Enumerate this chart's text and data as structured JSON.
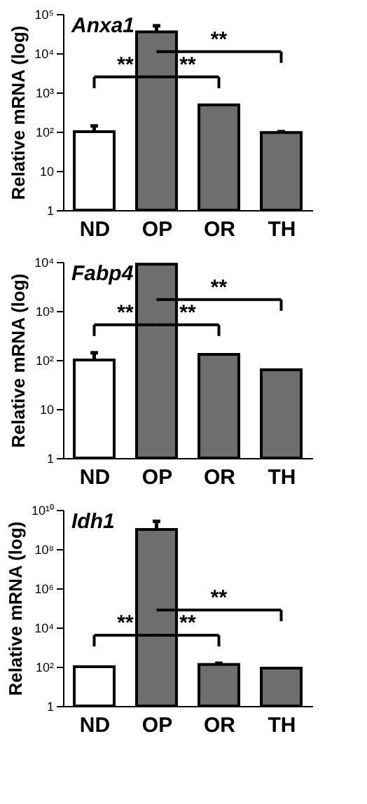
{
  "chart_data": [
    {
      "type": "bar",
      "title": "Anxa1",
      "ylabel": "Relative mRNA  (log)",
      "categories": [
        "ND",
        "OP",
        "OR",
        "TH"
      ],
      "values": [
        100,
        35000,
        480,
        95
      ],
      "colors": [
        "#ffffff",
        "#6e6e6e",
        "#6e6e6e",
        "#6e6e6e"
      ],
      "errors": [
        [
          100,
          140
        ],
        [
          35000,
          50000
        ],
        null,
        [
          95,
          100
        ]
      ],
      "log": true,
      "ylim": [
        1,
        100000
      ],
      "yticks": [
        1,
        10,
        {
          "value": 100,
          "label": "10²"
        },
        {
          "value": 1000,
          "label": "10³"
        },
        {
          "value": 10000,
          "label": "10⁴"
        },
        {
          "value": 100000,
          "label": "10⁵"
        }
      ],
      "grid": false,
      "annotations": [
        "**",
        "**",
        "**"
      ]
    },
    {
      "type": "bar",
      "title": "Fabp4",
      "ylabel": "Relative mRNA (log)",
      "categories": [
        "ND",
        "OP",
        "OR",
        "TH"
      ],
      "values": [
        100,
        9000,
        130,
        63
      ],
      "colors": [
        "#ffffff",
        "#6e6e6e",
        "#6e6e6e",
        "#6e6e6e"
      ],
      "errors": [
        [
          100,
          140
        ],
        null,
        null,
        null
      ],
      "log": true,
      "ylim": [
        1,
        10000
      ],
      "yticks": [
        1,
        10,
        {
          "value": 100,
          "label": "10²"
        },
        {
          "value": 1000,
          "label": "10³"
        },
        {
          "value": 10000,
          "label": "10⁴"
        }
      ],
      "grid": false,
      "annotations": [
        "**",
        "**",
        "**"
      ]
    },
    {
      "type": "bar",
      "title": "Idh1",
      "ylabel": "Relative mRNA (log)",
      "categories": [
        "ND",
        "OP",
        "OR",
        "TH"
      ],
      "values": [
        100,
        1000000000,
        130,
        85
      ],
      "colors": [
        "#ffffff",
        "#6e6e6e",
        "#6e6e6e",
        "#6e6e6e"
      ],
      "errors": [
        null,
        [
          1000000000,
          2600000000
        ],
        [
          130,
          150
        ],
        null
      ],
      "log": true,
      "ylim": [
        1,
        10000000000
      ],
      "yticks": [
        1,
        {
          "value": 100,
          "label": "10²"
        },
        {
          "value": 10000,
          "label": "10⁴"
        },
        {
          "value": 1000000,
          "label": "10⁶"
        },
        {
          "value": 100000000,
          "label": "10⁸"
        },
        {
          "value": 10000000000,
          "label": "10¹⁰"
        }
      ],
      "grid": false,
      "annotations": [
        "**",
        "**",
        "**"
      ]
    }
  ]
}
